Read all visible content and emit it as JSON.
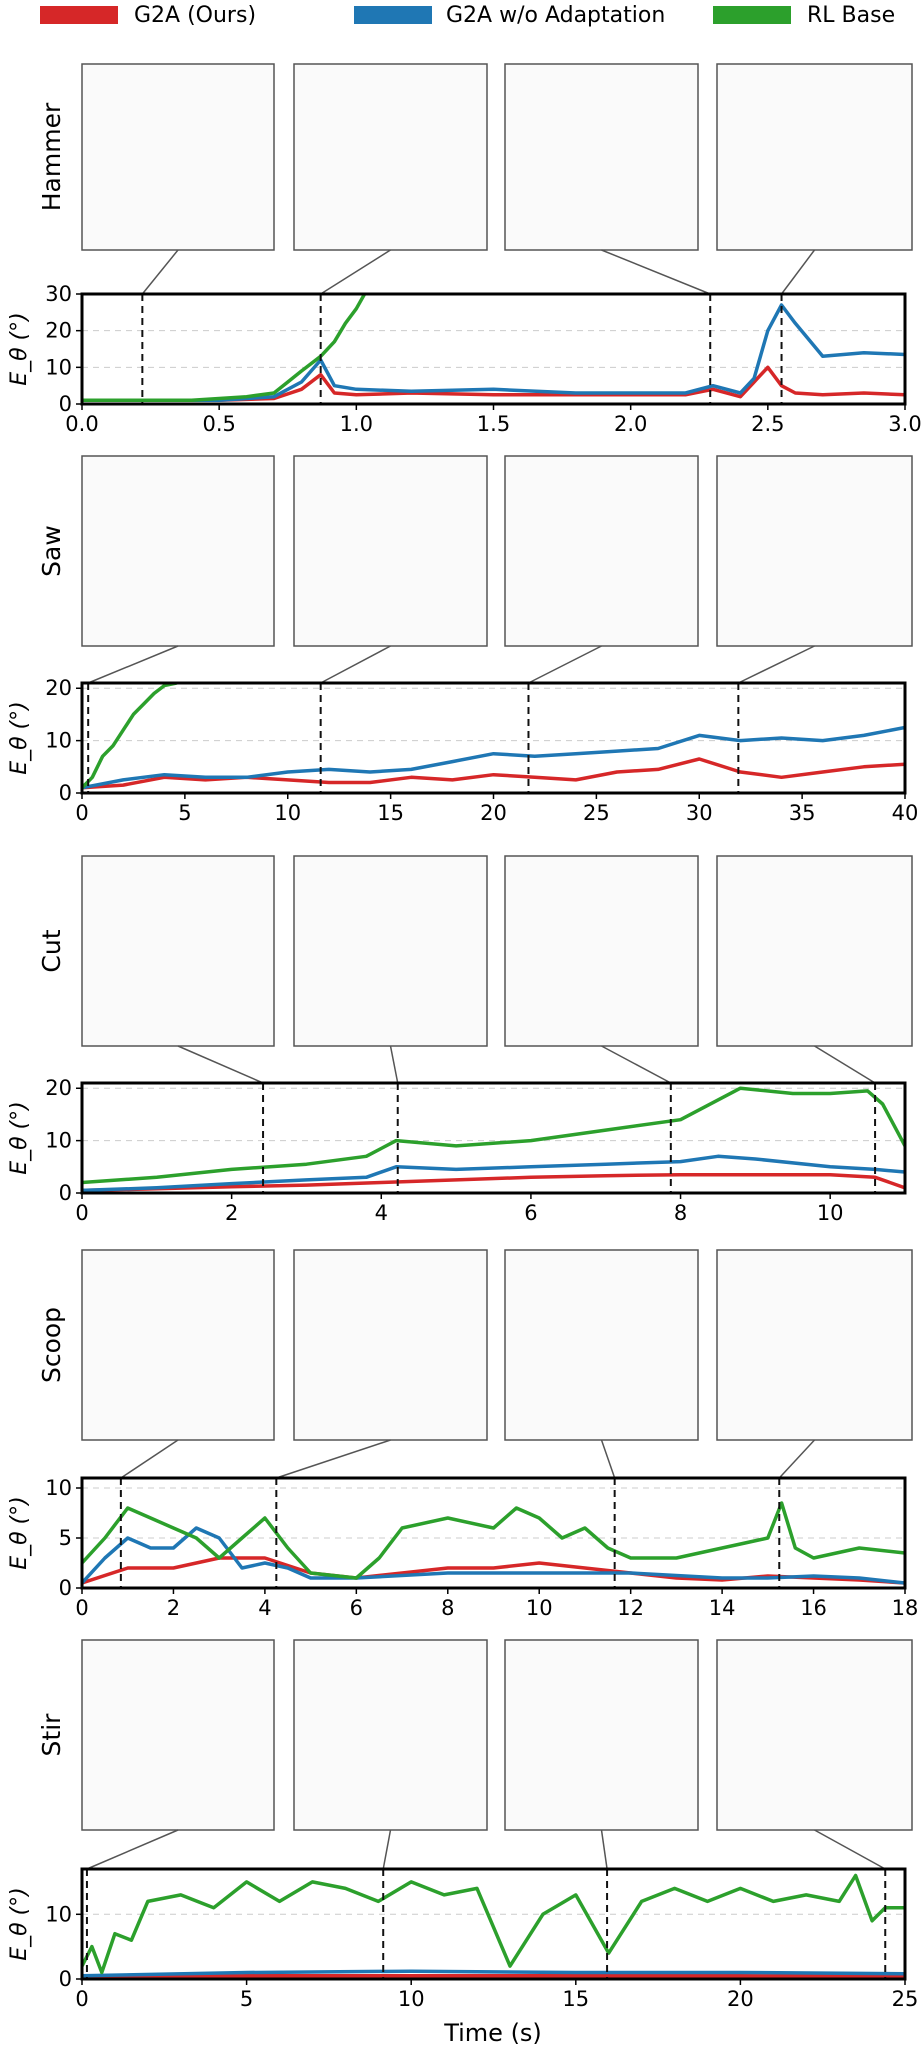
{
  "legend": [
    {
      "name": "G2A (Ours)",
      "color": "#d62728"
    },
    {
      "name": "G2A w/o Adaptation",
      "color": "#1f77b4"
    },
    {
      "name": "RL Base",
      "color": "#2ca02c"
    }
  ],
  "ylabel": "E_θ (°)",
  "xlabel": "Time (s)",
  "chart_data": [
    {
      "type": "line",
      "task": "Hammer",
      "xlim": [
        0,
        3
      ],
      "ylim": [
        0,
        30
      ],
      "xticks": [
        "0.0",
        "0.5",
        "1.0",
        "1.5",
        "2.0",
        "2.5",
        "3.0"
      ],
      "yticks": [
        "0",
        "10",
        "20",
        "30"
      ],
      "markers": [
        0.22,
        0.87,
        2.29,
        2.55
      ],
      "series": [
        {
          "name": "G2A (Ours)",
          "x": [
            0,
            0.5,
            0.7,
            0.8,
            0.87,
            0.92,
            1.0,
            1.2,
            1.5,
            1.8,
            2.0,
            2.2,
            2.3,
            2.4,
            2.45,
            2.5,
            2.55,
            2.6,
            2.7,
            2.85,
            3.0
          ],
          "y": [
            1,
            1,
            1.5,
            4,
            8,
            3,
            2.5,
            3,
            2.5,
            2.5,
            2.5,
            2.5,
            4,
            2,
            6,
            10,
            5,
            3,
            2.5,
            3,
            2.5
          ]
        },
        {
          "name": "G2A w/o Adaptation",
          "x": [
            0,
            0.5,
            0.7,
            0.8,
            0.87,
            0.92,
            1.0,
            1.2,
            1.5,
            1.8,
            2.0,
            2.2,
            2.3,
            2.4,
            2.45,
            2.5,
            2.55,
            2.6,
            2.7,
            2.85,
            3.0
          ],
          "y": [
            1,
            1,
            2,
            6,
            12,
            5,
            4,
            3.5,
            4,
            3,
            3,
            3,
            5,
            3,
            7,
            20,
            27,
            22,
            13,
            14,
            13.5
          ]
        },
        {
          "name": "RL Base",
          "x": [
            0,
            0.4,
            0.6,
            0.7,
            0.75,
            0.8,
            0.87,
            0.92,
            0.96,
            1.0,
            1.03
          ],
          "y": [
            1,
            1,
            2,
            3,
            6,
            9,
            13,
            17,
            22,
            26,
            30
          ]
        }
      ]
    },
    {
      "type": "line",
      "task": "Saw",
      "xlim": [
        0,
        40
      ],
      "ylim": [
        0,
        21
      ],
      "xticks": [
        "0",
        "5",
        "10",
        "15",
        "20",
        "25",
        "30",
        "35",
        "40"
      ],
      "yticks": [
        "0",
        "10",
        "20"
      ],
      "markers": [
        0.3,
        11.6,
        21.7,
        31.9
      ],
      "series": [
        {
          "name": "G2A (Ours)",
          "x": [
            0,
            2,
            4,
            6,
            8,
            10,
            12,
            14,
            16,
            18,
            20,
            22,
            24,
            26,
            28,
            30,
            32,
            34,
            36,
            38,
            40
          ],
          "y": [
            1,
            1.5,
            3,
            2.5,
            3,
            2.5,
            2,
            2,
            3,
            2.5,
            3.5,
            3,
            2.5,
            4,
            4.5,
            6.5,
            4,
            3,
            4,
            5,
            5.5
          ]
        },
        {
          "name": "G2A w/o Adaptation",
          "x": [
            0,
            2,
            4,
            6,
            8,
            10,
            12,
            14,
            16,
            18,
            20,
            22,
            24,
            26,
            28,
            30,
            32,
            34,
            36,
            38,
            40
          ],
          "y": [
            1,
            2.5,
            3.5,
            3,
            3,
            4,
            4.5,
            4,
            4.5,
            6,
            7.5,
            7,
            7.5,
            8,
            8.5,
            11,
            10,
            10.5,
            10,
            11,
            12.5
          ]
        },
        {
          "name": "RL Base",
          "x": [
            0,
            0.5,
            1,
            1.5,
            2,
            2.5,
            3,
            3.5,
            4,
            4.6
          ],
          "y": [
            1,
            3,
            7,
            9,
            12,
            15,
            17,
            19,
            20.5,
            21
          ]
        }
      ]
    },
    {
      "type": "line",
      "task": "Cut",
      "xlim": [
        0,
        11
      ],
      "ylim": [
        0,
        21
      ],
      "xticks": [
        "0",
        "2",
        "4",
        "6",
        "8",
        "10"
      ],
      "yticks": [
        "0",
        "10",
        "20"
      ],
      "markers": [
        2.42,
        4.22,
        7.87,
        10.6
      ],
      "series": [
        {
          "name": "G2A (Ours)",
          "x": [
            0,
            1,
            2,
            3,
            4,
            5,
            6,
            7,
            8,
            9,
            10,
            10.6,
            11
          ],
          "y": [
            0.5,
            0.8,
            1.2,
            1.5,
            2,
            2.5,
            3,
            3.3,
            3.5,
            3.5,
            3.5,
            3,
            1
          ]
        },
        {
          "name": "G2A w/o Adaptation",
          "x": [
            0,
            1,
            2,
            3,
            3.8,
            4.2,
            5,
            6,
            7,
            8,
            8.5,
            9,
            10,
            10.6,
            11
          ],
          "y": [
            0.5,
            1,
            1.8,
            2.5,
            3,
            5,
            4.5,
            5,
            5.5,
            6,
            7,
            6.5,
            5,
            4.5,
            4
          ]
        },
        {
          "name": "RL Base",
          "x": [
            0,
            1,
            2,
            3,
            3.8,
            4.2,
            5,
            6,
            7,
            8,
            8.8,
            9.5,
            10,
            10.5,
            10.7,
            11
          ],
          "y": [
            2,
            3,
            4.5,
            5.5,
            7,
            10,
            9,
            10,
            12,
            14,
            20,
            19,
            19,
            19.5,
            17,
            9
          ]
        }
      ]
    },
    {
      "type": "line",
      "task": "Scoop",
      "xlim": [
        0,
        18
      ],
      "ylim": [
        0,
        11
      ],
      "xticks": [
        "0",
        "2",
        "4",
        "6",
        "8",
        "10",
        "12",
        "14",
        "16",
        "18"
      ],
      "yticks": [
        "0",
        "5",
        "10"
      ],
      "markers": [
        0.85,
        4.25,
        11.65,
        15.25
      ],
      "series": [
        {
          "name": "G2A (Ours)",
          "x": [
            0,
            1,
            2,
            3,
            4,
            5,
            6,
            7,
            8,
            9,
            10,
            11,
            12,
            13,
            14,
            15,
            16,
            17,
            18
          ],
          "y": [
            0.5,
            2,
            2,
            3,
            3,
            1.5,
            1,
            1.5,
            2,
            2,
            2.5,
            2,
            1.5,
            1,
            0.8,
            1.2,
            1,
            0.8,
            0.5
          ]
        },
        {
          "name": "G2A w/o Adaptation",
          "x": [
            0,
            0.5,
            1,
            1.5,
            2,
            2.5,
            3,
            3.5,
            4,
            4.5,
            5,
            6,
            8,
            10,
            12,
            14,
            15,
            16,
            17,
            18
          ],
          "y": [
            0.5,
            3,
            5,
            4,
            4,
            6,
            5,
            2,
            2.5,
            2,
            1,
            1,
            1.5,
            1.5,
            1.5,
            1,
            1,
            1.2,
            1,
            0.5
          ]
        },
        {
          "name": "RL Base",
          "x": [
            0,
            0.5,
            1,
            1.5,
            2,
            2.5,
            3,
            3.5,
            4,
            4.5,
            5,
            6,
            6.5,
            7,
            8,
            9,
            9.5,
            10,
            10.5,
            11,
            11.5,
            12,
            13,
            14,
            14.5,
            15,
            15.3,
            15.6,
            16,
            17,
            18
          ],
          "y": [
            2.5,
            5,
            8,
            7,
            6,
            5,
            3,
            5,
            7,
            4,
            1.5,
            1,
            3,
            6,
            7,
            6,
            8,
            7,
            5,
            6,
            4,
            3,
            3,
            4,
            4.5,
            5,
            8.5,
            4,
            3,
            4,
            3.5
          ]
        }
      ]
    },
    {
      "type": "line",
      "task": "Stir",
      "xlim": [
        0,
        25
      ],
      "ylim": [
        0,
        17
      ],
      "xticks": [
        "0",
        "5",
        "10",
        "15",
        "20",
        "25"
      ],
      "yticks": [
        "0",
        "10"
      ],
      "markers": [
        0.15,
        9.15,
        15.95,
        24.4
      ],
      "series": [
        {
          "name": "G2A (Ours)",
          "x": [
            0,
            5,
            10,
            15,
            20,
            25
          ],
          "y": [
            0.3,
            0.5,
            0.5,
            0.5,
            0.5,
            0.4
          ]
        },
        {
          "name": "G2A w/o Adaptation",
          "x": [
            0,
            5,
            10,
            15,
            20,
            25
          ],
          "y": [
            0.5,
            1,
            1.2,
            1,
            1,
            0.8
          ]
        },
        {
          "name": "RL Base",
          "x": [
            0,
            0.3,
            0.6,
            1,
            1.5,
            2,
            3,
            4,
            5,
            6,
            7,
            8,
            9,
            10,
            11,
            12,
            12.5,
            13,
            14,
            15,
            16,
            17,
            18,
            19,
            20,
            21,
            22,
            23,
            23.5,
            24,
            24.4,
            25
          ],
          "y": [
            2,
            5,
            1,
            7,
            6,
            12,
            13,
            11,
            15,
            12,
            15,
            14,
            12,
            15,
            13,
            14,
            8,
            2,
            10,
            13,
            4,
            12,
            14,
            12,
            14,
            12,
            13,
            12,
            16,
            9,
            11,
            11
          ]
        }
      ]
    }
  ]
}
